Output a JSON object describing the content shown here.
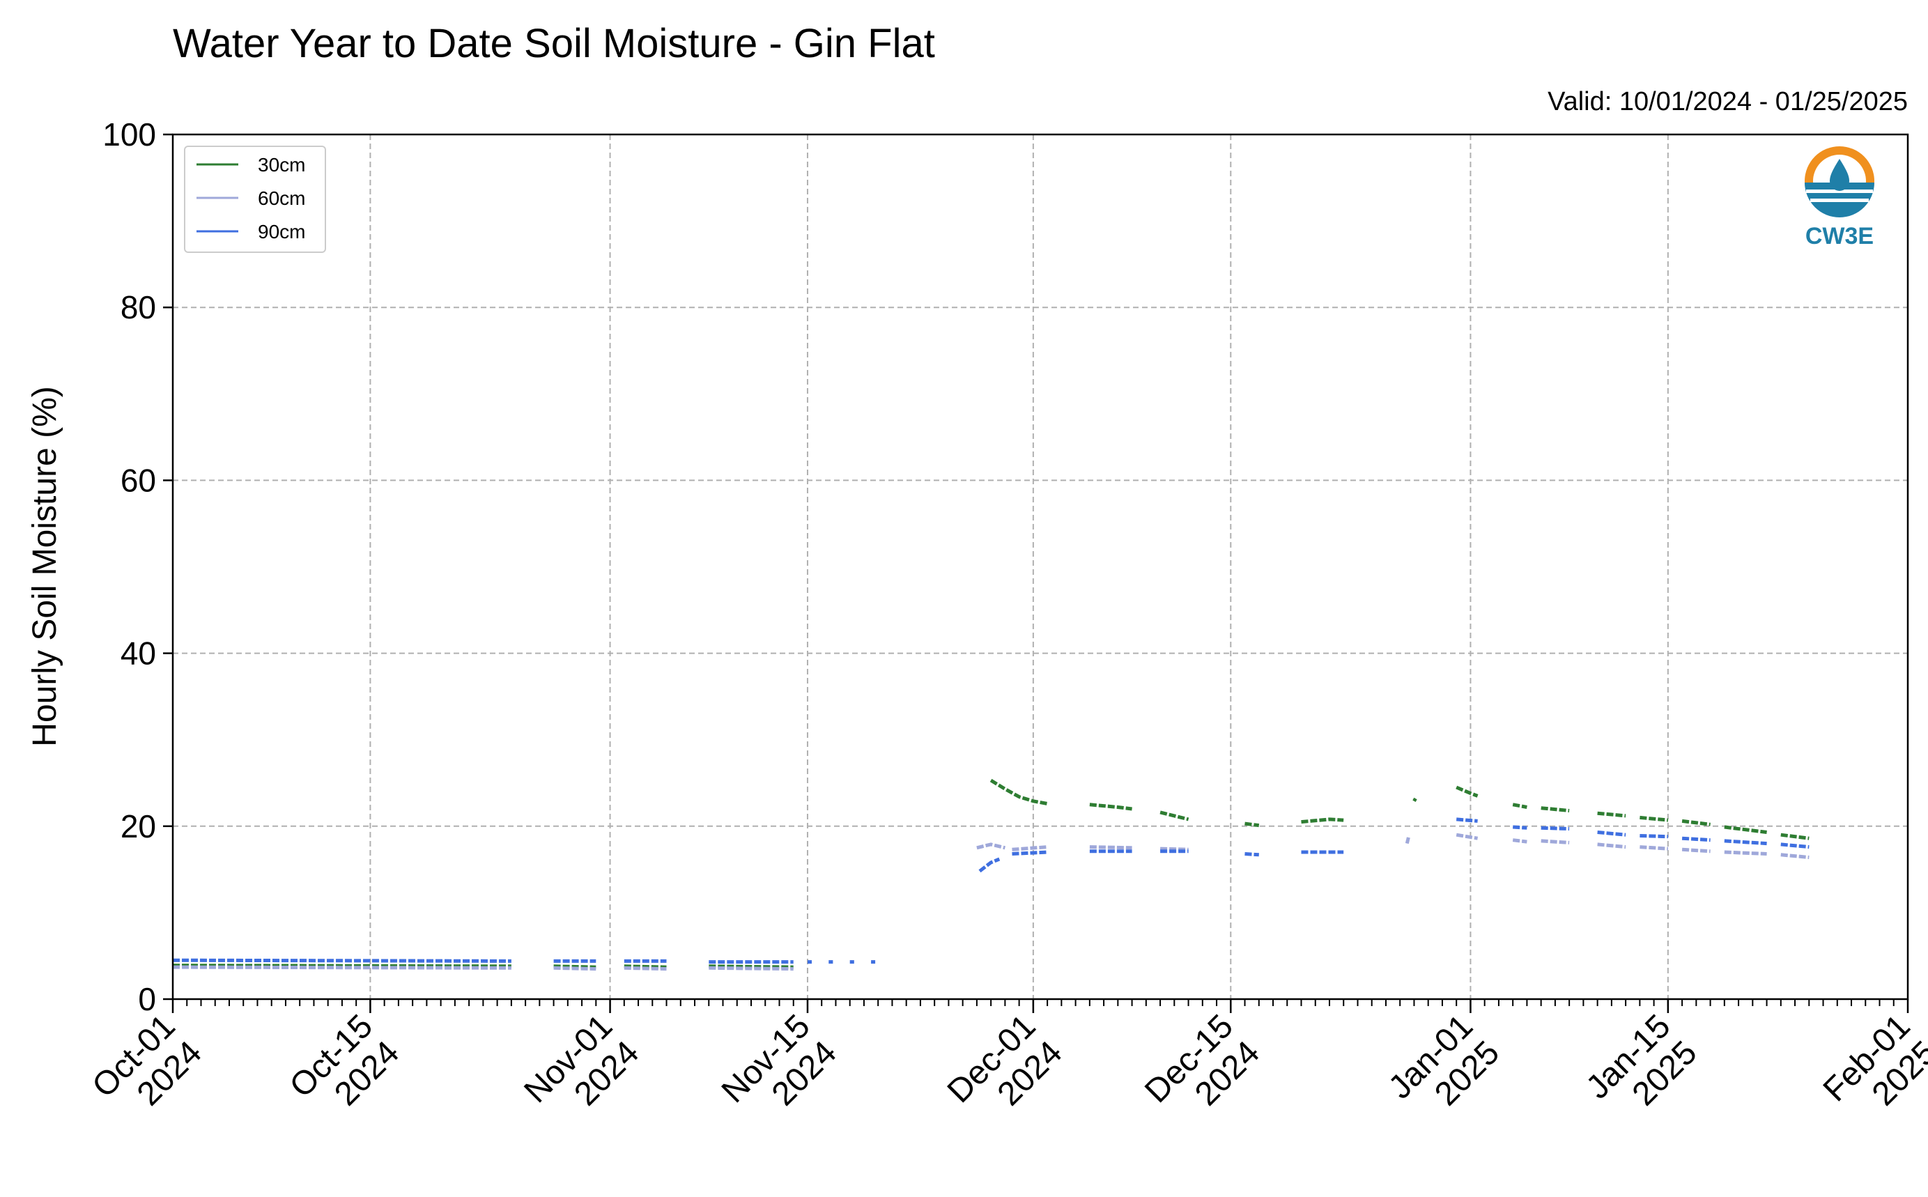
{
  "chart_data": {
    "type": "line",
    "title": "Water Year to Date Soil Moisture - Gin Flat",
    "subtitle": "Valid: 10/01/2024 - 01/25/2025",
    "ylabel": "Hourly Soil Moisture (%)",
    "xlabel": "",
    "xlim": [
      "2024-10-01",
      "2025-02-01"
    ],
    "ylim": [
      0,
      100
    ],
    "yticks": [
      0,
      20,
      40,
      60,
      80,
      100
    ],
    "xticks": [
      {
        "date": "2024-10-01",
        "label1": "Oct-01",
        "label2": "2024"
      },
      {
        "date": "2024-10-15",
        "label1": "Oct-15",
        "label2": "2024"
      },
      {
        "date": "2024-11-01",
        "label1": "Nov-01",
        "label2": "2024"
      },
      {
        "date": "2024-11-15",
        "label1": "Nov-15",
        "label2": "2024"
      },
      {
        "date": "2024-12-01",
        "label1": "Dec-01",
        "label2": "2024"
      },
      {
        "date": "2024-12-15",
        "label1": "Dec-15",
        "label2": "2024"
      },
      {
        "date": "2025-01-01",
        "label1": "Jan-01",
        "label2": "2025"
      },
      {
        "date": "2025-01-15",
        "label1": "Jan-15",
        "label2": "2025"
      },
      {
        "date": "2025-02-01",
        "label1": "Feb-01",
        "label2": "2025"
      }
    ],
    "grid": true,
    "legend_position": "top-left",
    "series": [
      {
        "name": "30cm",
        "color": "#2e7d32",
        "segments": [
          [
            [
              "2024-10-01",
              3.9
            ],
            [
              "2024-10-25",
              3.8
            ]
          ],
          [
            [
              "2024-10-28",
              3.8
            ],
            [
              "2024-10-31",
              3.7
            ]
          ],
          [
            [
              "2024-11-02",
              3.8
            ],
            [
              "2024-11-05",
              3.7
            ]
          ],
          [
            [
              "2024-11-08",
              3.8
            ],
            [
              "2024-11-14",
              3.7
            ]
          ],
          [
            [
              "2024-11-28",
              25.3
            ],
            [
              "2024-11-29",
              24.3
            ],
            [
              "2024-11-30",
              23.4
            ],
            [
              "2024-12-01",
              22.9
            ],
            [
              "2024-12-02",
              22.6
            ]
          ],
          [
            [
              "2024-12-05",
              22.5
            ],
            [
              "2024-12-07",
              22.2
            ],
            [
              "2024-12-08",
              22.0
            ]
          ],
          [
            [
              "2024-12-10",
              21.6
            ],
            [
              "2024-12-11",
              21.2
            ],
            [
              "2024-12-12",
              20.8
            ]
          ],
          [
            [
              "2024-12-16",
              20.3
            ],
            [
              "2024-12-17",
              20.1
            ]
          ],
          [
            [
              "2024-12-20",
              20.5
            ],
            [
              "2024-12-22",
              20.8
            ],
            [
              "2024-12-23",
              20.7
            ]
          ],
          [
            [
              "2024-12-28",
              22.9
            ],
            [
              "2024-12-28.1",
              23.2
            ]
          ],
          [
            [
              "2024-12-31",
              24.5
            ],
            [
              "2025-01-01",
              23.8
            ],
            [
              "2025-01-01.5",
              23.5
            ]
          ],
          [
            [
              "2025-01-04",
              22.5
            ],
            [
              "2025-01-05",
              22.2
            ]
          ],
          [
            [
              "2025-01-06",
              22.1
            ],
            [
              "2025-01-08",
              21.8
            ]
          ],
          [
            [
              "2025-01-10",
              21.5
            ],
            [
              "2025-01-12",
              21.2
            ]
          ],
          [
            [
              "2025-01-13",
              21.0
            ],
            [
              "2025-01-15",
              20.7
            ]
          ],
          [
            [
              "2025-01-16",
              20.6
            ],
            [
              "2025-01-18",
              20.2
            ]
          ],
          [
            [
              "2025-01-19",
              19.9
            ],
            [
              "2025-01-22",
              19.3
            ]
          ],
          [
            [
              "2025-01-23",
              19.0
            ],
            [
              "2025-01-25",
              18.6
            ]
          ]
        ]
      },
      {
        "name": "60cm",
        "color": "#9fa8da",
        "segments": [
          [
            [
              "2024-10-01",
              3.7
            ],
            [
              "2024-10-25",
              3.6
            ]
          ],
          [
            [
              "2024-10-28",
              3.6
            ],
            [
              "2024-10-31",
              3.5
            ]
          ],
          [
            [
              "2024-11-02",
              3.6
            ],
            [
              "2024-11-05",
              3.5
            ]
          ],
          [
            [
              "2024-11-08",
              3.6
            ],
            [
              "2024-11-14",
              3.5
            ]
          ],
          [
            [
              "2024-11-27",
              17.5
            ],
            [
              "2024-11-28",
              17.9
            ],
            [
              "2024-11-29",
              17.5
            ]
          ],
          [
            [
              "2024-11-29.5",
              17.3
            ],
            [
              "2024-12-02",
              17.6
            ]
          ],
          [
            [
              "2024-12-05",
              17.6
            ],
            [
              "2024-12-08",
              17.5
            ]
          ],
          [
            [
              "2024-12-10",
              17.4
            ],
            [
              "2024-12-12",
              17.3
            ]
          ],
          [
            [
              "2024-12-27.5",
              18.0
            ],
            [
              "2024-12-27.6",
              18.7
            ]
          ],
          [
            [
              "2024-12-31",
              19.0
            ],
            [
              "2025-01-01.5",
              18.6
            ]
          ],
          [
            [
              "2025-01-04",
              18.4
            ],
            [
              "2025-01-05",
              18.2
            ]
          ],
          [
            [
              "2025-01-06",
              18.3
            ],
            [
              "2025-01-08",
              18.1
            ]
          ],
          [
            [
              "2025-01-10",
              17.9
            ],
            [
              "2025-01-12",
              17.6
            ]
          ],
          [
            [
              "2025-01-13",
              17.6
            ],
            [
              "2025-01-15",
              17.4
            ]
          ],
          [
            [
              "2025-01-16",
              17.3
            ],
            [
              "2025-01-18",
              17.1
            ]
          ],
          [
            [
              "2025-01-19",
              17.0
            ],
            [
              "2025-01-22",
              16.8
            ]
          ],
          [
            [
              "2025-01-23",
              16.7
            ],
            [
              "2025-01-25",
              16.4
            ]
          ]
        ]
      },
      {
        "name": "90cm",
        "color": "#3f6fe0",
        "segments": [
          [
            [
              "2024-10-01",
              4.5
            ],
            [
              "2024-10-25",
              4.4
            ]
          ],
          [
            [
              "2024-10-28",
              4.4
            ],
            [
              "2024-10-31",
              4.4
            ]
          ],
          [
            [
              "2024-11-02",
              4.4
            ],
            [
              "2024-11-05",
              4.4
            ]
          ],
          [
            [
              "2024-11-08",
              4.3
            ],
            [
              "2024-11-14",
              4.3
            ]
          ],
          [
            [
              "2024-11-15",
              4.3
            ],
            [
              "2024-11-15.3",
              4.3
            ]
          ],
          [
            [
              "2024-11-16.5",
              4.3
            ],
            [
              "2024-11-16.8",
              4.3
            ]
          ],
          [
            [
              "2024-11-18",
              4.3
            ],
            [
              "2024-11-18.3",
              4.3
            ]
          ],
          [
            [
              "2024-11-19.5",
              4.3
            ],
            [
              "2024-11-19.8",
              4.3
            ]
          ],
          [
            [
              "2024-11-27.2",
              14.8
            ],
            [
              "2024-11-28",
              15.8
            ],
            [
              "2024-11-28.6",
              16.2
            ]
          ],
          [
            [
              "2024-11-29.5",
              16.8
            ],
            [
              "2024-12-02",
              17.0
            ]
          ],
          [
            [
              "2024-12-05",
              17.1
            ],
            [
              "2024-12-08",
              17.1
            ]
          ],
          [
            [
              "2024-12-10",
              17.1
            ],
            [
              "2024-12-12",
              17.1
            ]
          ],
          [
            [
              "2024-12-16",
              16.8
            ],
            [
              "2024-12-17",
              16.7
            ]
          ],
          [
            [
              "2024-12-20",
              17.0
            ],
            [
              "2024-12-23",
              17.0
            ]
          ],
          [
            [
              "2024-12-31",
              20.8
            ],
            [
              "2025-01-01.5",
              20.6
            ]
          ],
          [
            [
              "2025-01-04",
              19.9
            ],
            [
              "2025-01-05",
              19.8
            ]
          ],
          [
            [
              "2025-01-06",
              19.8
            ],
            [
              "2025-01-08",
              19.7
            ]
          ],
          [
            [
              "2025-01-10",
              19.3
            ],
            [
              "2025-01-12",
              19.0
            ]
          ],
          [
            [
              "2025-01-13",
              18.9
            ],
            [
              "2025-01-15",
              18.8
            ]
          ],
          [
            [
              "2025-01-16",
              18.6
            ],
            [
              "2025-01-18",
              18.4
            ]
          ],
          [
            [
              "2025-01-19",
              18.3
            ],
            [
              "2025-01-22",
              18.0
            ]
          ],
          [
            [
              "2025-01-23",
              17.9
            ],
            [
              "2025-01-25",
              17.6
            ]
          ]
        ]
      }
    ]
  },
  "logo": {
    "text": "CW3E",
    "ring_color": "#f0901e",
    "body_color": "#1f7fa8",
    "icon": "water-drop-icon"
  }
}
